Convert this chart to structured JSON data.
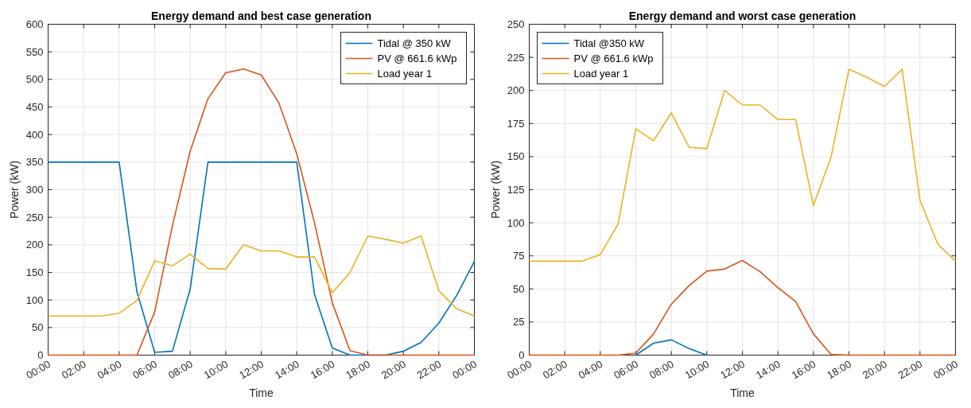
{
  "chart_data": [
    {
      "type": "line",
      "title": "Energy demand and best case generation",
      "xlabel": "Time",
      "ylabel": "Power (kW)",
      "x": [
        0,
        1,
        2,
        3,
        4,
        5,
        6,
        7,
        8,
        9,
        10,
        11,
        12,
        13,
        14,
        15,
        16,
        17,
        18,
        19,
        20,
        21,
        22,
        23,
        24
      ],
      "series": [
        {
          "name": "Tidal @ 350 kW",
          "color": "#0072bd",
          "values": [
            350,
            350,
            350,
            350,
            350,
            115,
            5,
            7,
            120,
            350,
            350,
            350,
            350,
            350,
            350,
            110,
            13,
            0,
            0,
            0,
            7,
            23,
            58,
            108,
            170
          ]
        },
        {
          "name": "PV @ 661.6 kWp",
          "color": "#d95319",
          "values": [
            0,
            0,
            0,
            0,
            0,
            0,
            78,
            235,
            370,
            465,
            512,
            519,
            508,
            457,
            365,
            240,
            95,
            8,
            0,
            0,
            0,
            0,
            0,
            0,
            0
          ]
        },
        {
          "name": "Load year 1",
          "color": "#edb120",
          "values": [
            71,
            71,
            71,
            71,
            76,
            99,
            171,
            162,
            183,
            157,
            156,
            200,
            189,
            189,
            178,
            178,
            113,
            150,
            216,
            210,
            203,
            216,
            117,
            84,
            71
          ]
        }
      ],
      "xlim": [
        0,
        24
      ],
      "xticks": [
        {
          "value": 0,
          "label": "00:00"
        },
        {
          "value": 2,
          "label": "02:00"
        },
        {
          "value": 4,
          "label": "04:00"
        },
        {
          "value": 6,
          "label": "06:00"
        },
        {
          "value": 8,
          "label": "08:00"
        },
        {
          "value": 10,
          "label": "10:00"
        },
        {
          "value": 12,
          "label": "12:00"
        },
        {
          "value": 14,
          "label": "14:00"
        },
        {
          "value": 16,
          "label": "16:00"
        },
        {
          "value": 18,
          "label": "18:00"
        },
        {
          "value": 20,
          "label": "20:00"
        },
        {
          "value": 22,
          "label": "22:00"
        },
        {
          "value": 24,
          "label": "00:00"
        }
      ],
      "ylim": [
        0,
        600
      ],
      "yticks": [
        0,
        50,
        100,
        150,
        200,
        250,
        300,
        350,
        400,
        450,
        500,
        550,
        600
      ],
      "grid": true,
      "legend": "top right"
    },
    {
      "type": "line",
      "title": "Energy demand and worst case generation",
      "xlabel": "Time",
      "ylabel": "Power (kW)",
      "x": [
        0,
        1,
        2,
        3,
        4,
        5,
        6,
        7,
        8,
        9,
        10,
        11,
        12,
        13,
        14,
        15,
        16,
        17,
        18,
        19,
        20,
        21,
        22,
        23,
        24
      ],
      "series": [
        {
          "name": "Tidal @350 kW",
          "color": "#0072bd",
          "values": [
            null,
            null,
            null,
            null,
            null,
            null,
            0,
            9,
            11.5,
            5,
            0,
            null,
            null,
            null,
            null,
            null,
            null,
            null,
            null,
            null,
            null,
            null,
            null,
            null,
            null
          ]
        },
        {
          "name": "PV @ 661.6 kWp",
          "color": "#d95319",
          "values": [
            0,
            0,
            0,
            0,
            0,
            0,
            1.5,
            16,
            38.5,
            52.5,
            63.5,
            65,
            71.5,
            63,
            51,
            40.5,
            16,
            0.5,
            0,
            0,
            0,
            0,
            0,
            0,
            0
          ]
        },
        {
          "name": "Load year 1",
          "color": "#edb120",
          "values": [
            71,
            71,
            71,
            71,
            76,
            99,
            171,
            162,
            183,
            157,
            156,
            200,
            189,
            189,
            178,
            178,
            113,
            150,
            216,
            210,
            203,
            216,
            117,
            84,
            71
          ]
        }
      ],
      "xlim": [
        0,
        24
      ],
      "xticks": [
        {
          "value": 0,
          "label": "00:00"
        },
        {
          "value": 2,
          "label": "02:00"
        },
        {
          "value": 4,
          "label": "04:00"
        },
        {
          "value": 6,
          "label": "06:00"
        },
        {
          "value": 8,
          "label": "08:00"
        },
        {
          "value": 10,
          "label": "10:00"
        },
        {
          "value": 12,
          "label": "12:00"
        },
        {
          "value": 14,
          "label": "14:00"
        },
        {
          "value": 16,
          "label": "16:00"
        },
        {
          "value": 18,
          "label": "18:00"
        },
        {
          "value": 20,
          "label": "20:00"
        },
        {
          "value": 22,
          "label": "22:00"
        },
        {
          "value": 24,
          "label": "00:00"
        }
      ],
      "ylim": [
        0,
        250
      ],
      "yticks": [
        0,
        25,
        50,
        75,
        100,
        125,
        150,
        175,
        200,
        225,
        250
      ],
      "grid": true,
      "legend": "top left"
    }
  ]
}
